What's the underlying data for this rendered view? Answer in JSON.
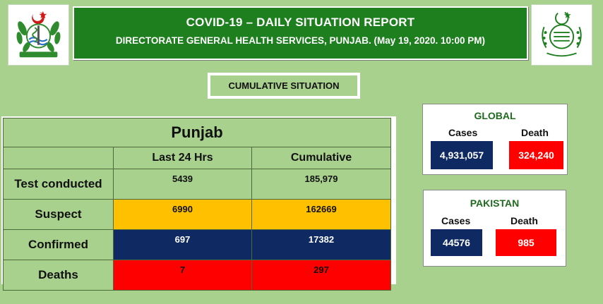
{
  "header": {
    "title": "COVID-19 – DAILY SITUATION REPORT",
    "subtitle": "DIRECTORATE GENERAL HEALTH SERVICES, PUNJAB.  (May 19, 2020.  10:00 PM)"
  },
  "section_label": "CUMULATIVE SITUATION",
  "punjab_table": {
    "title": "Punjab",
    "columns": [
      "Last 24 Hrs",
      "Cumulative"
    ],
    "rows": [
      {
        "label": "Test conducted",
        "last_24": "5439",
        "cumulative": "185,979",
        "color": "#a9d18e"
      },
      {
        "label": "Suspect",
        "last_24": "6990",
        "cumulative": "162669",
        "color": "#ffc000"
      },
      {
        "label": "Confirmed",
        "last_24": "697",
        "cumulative": "17382",
        "color": "#0f2a63"
      },
      {
        "label": "Deaths",
        "last_24": "7",
        "cumulative": "297",
        "color": "#ff0000"
      }
    ]
  },
  "global": {
    "title": "GLOBAL",
    "cases_label": "Cases",
    "death_label": "Death",
    "cases": "4,931,057",
    "deaths": "324,240"
  },
  "pakistan": {
    "title": "PAKISTAN",
    "cases_label": "Cases",
    "death_label": "Death",
    "cases": "44576",
    "deaths": "985"
  },
  "colors": {
    "background": "#a9d18e",
    "banner": "#1e7f1e",
    "navy": "#0f2a63",
    "red": "#ff0000",
    "amber": "#ffc000"
  },
  "logos": {
    "left": "health-department-emblem",
    "right": "government-of-punjab-emblem"
  }
}
